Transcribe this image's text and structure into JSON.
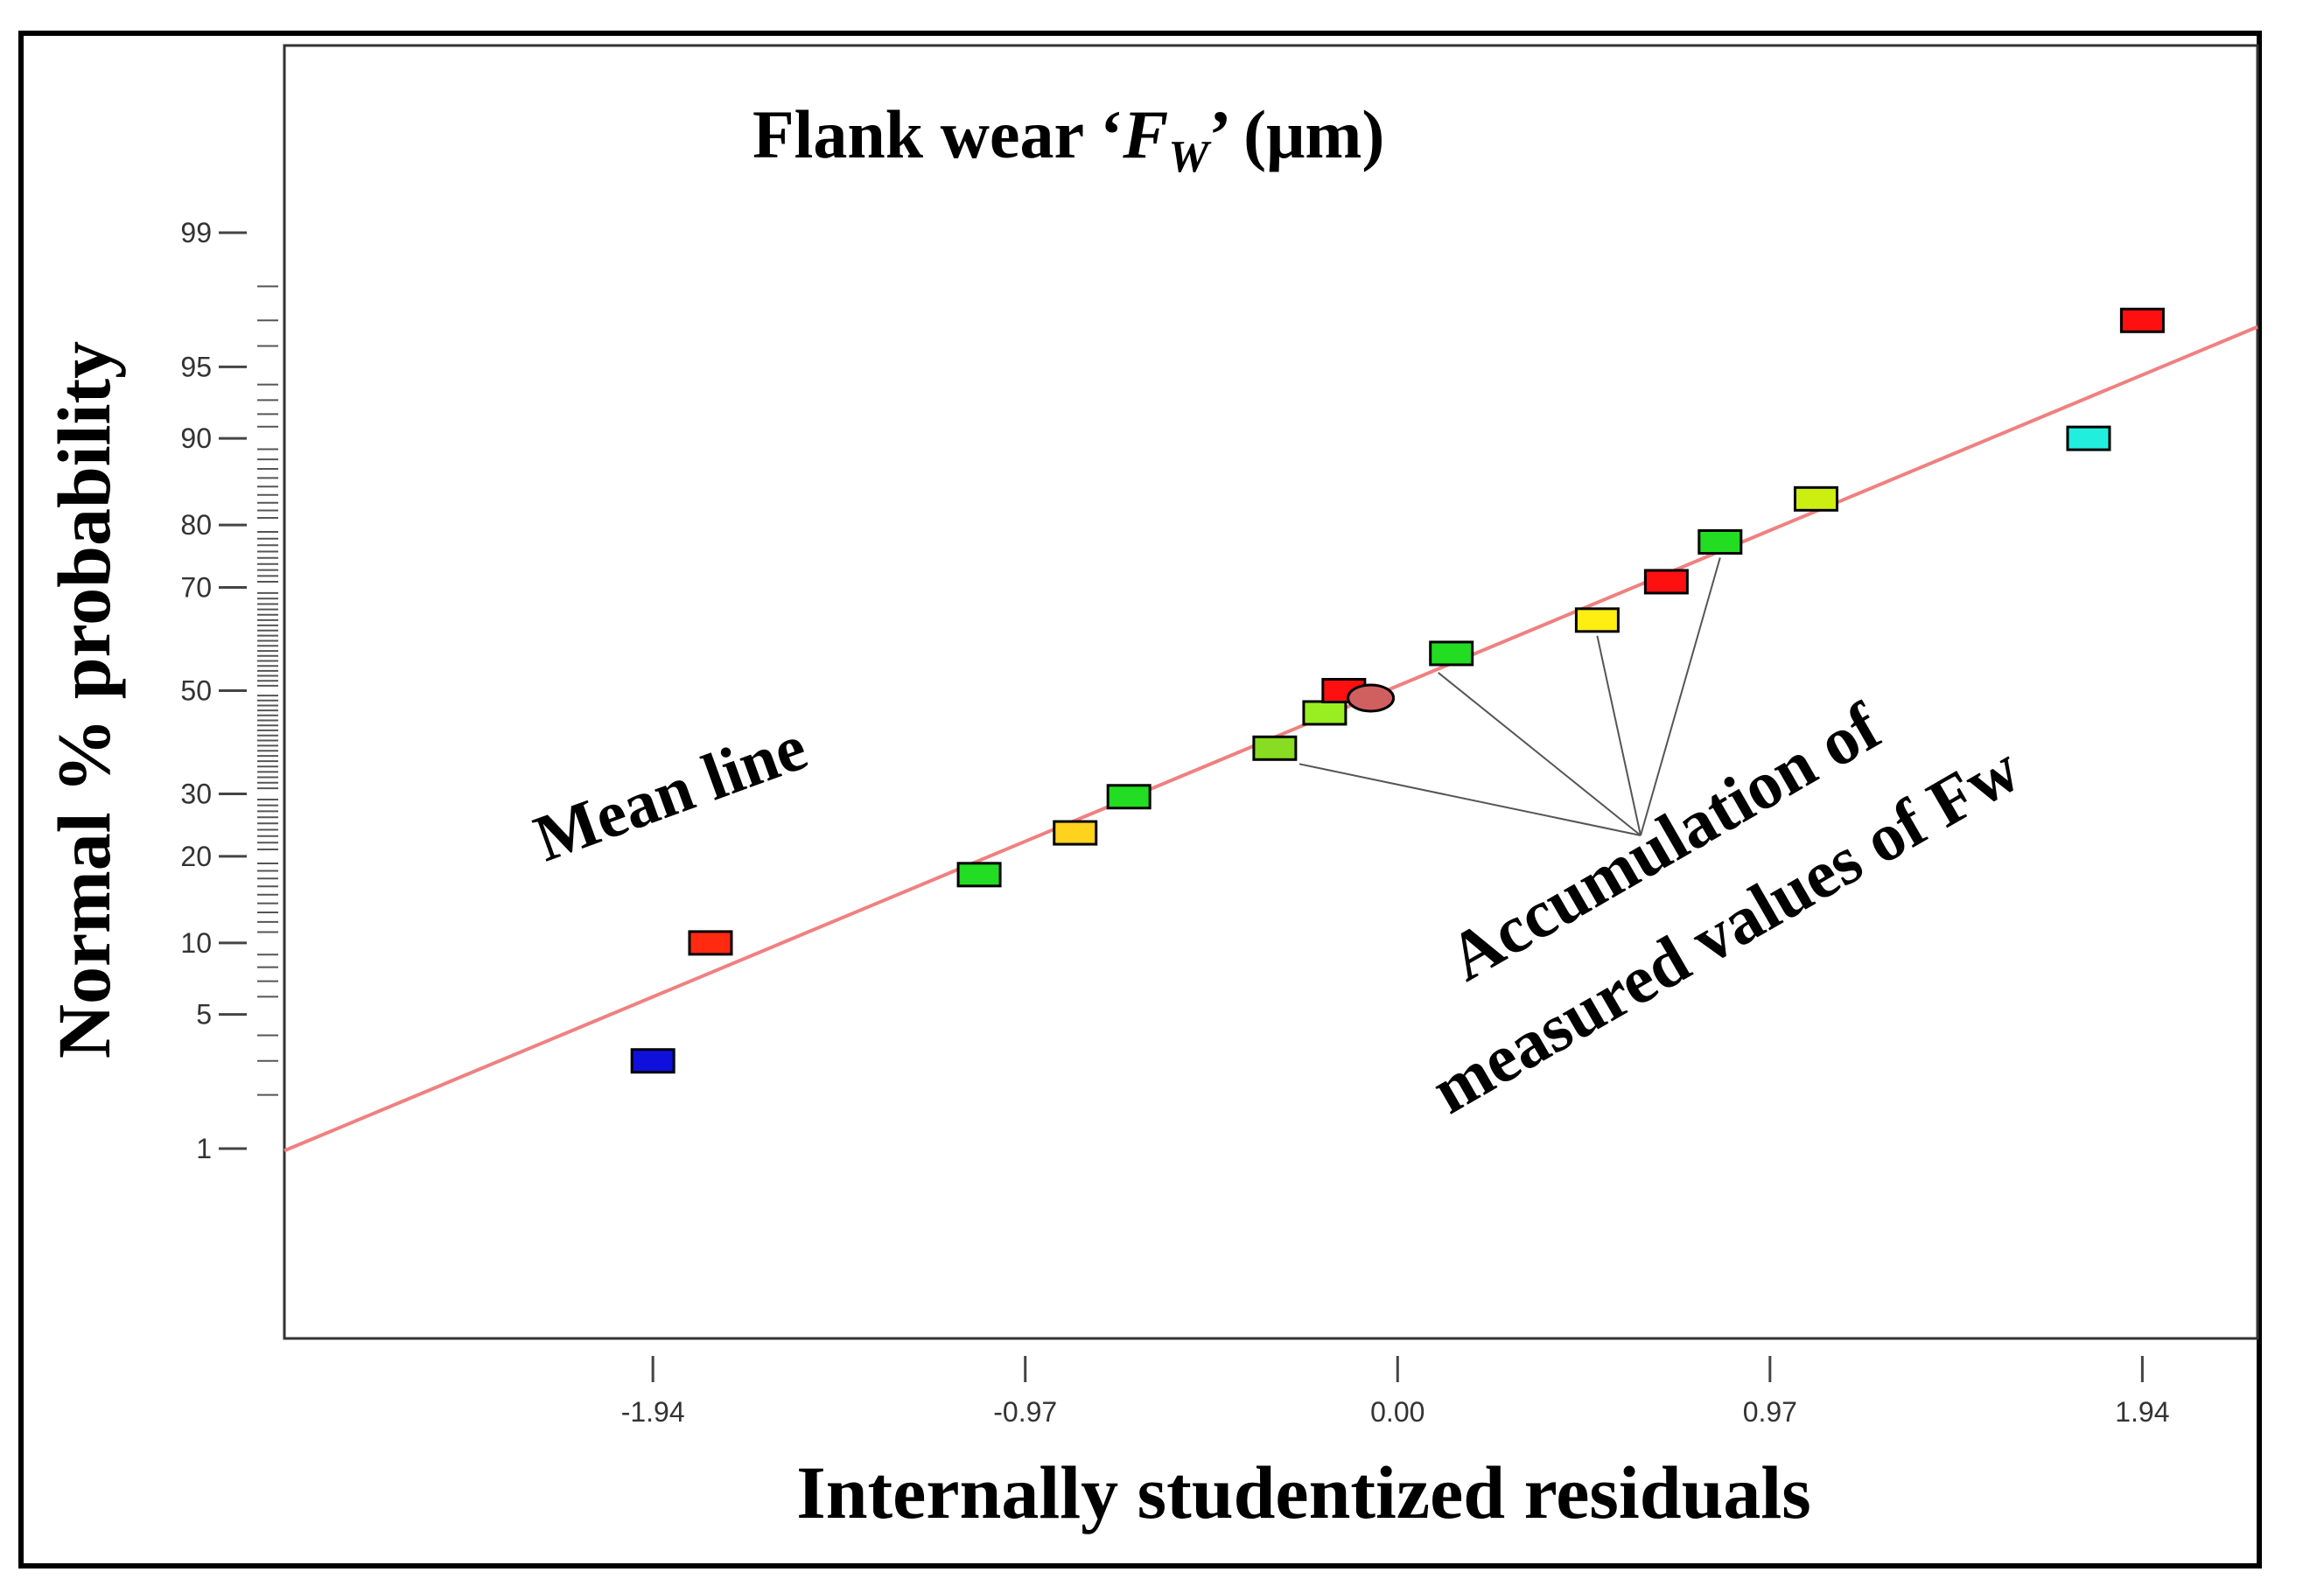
{
  "chart_data": {
    "type": "scatter",
    "title": "Flank wear ‘F’ (μm)",
    "title_subscript": "W",
    "title_after_subscript": "’ (μm)",
    "title_parts": {
      "before": "Flank wear ‘",
      "variable": "F",
      "subscript": "W",
      "after": "’ (μm)"
    },
    "xlabel": "Internally  studentized  residuals",
    "ylabel": "Normal  %  probability",
    "xlim": [
      -2.9,
      2.24
    ],
    "x_ticks": [
      "-1.94",
      "-0.97",
      "0.00",
      "0.97",
      "1.94"
    ],
    "y_ticks": [
      "1",
      "5",
      "10",
      "20",
      "30",
      "50",
      "70",
      "80",
      "90",
      "95",
      "99"
    ],
    "y_scale": "normal-probability",
    "mean_line": {
      "label": "Mean line",
      "color": "#f08080",
      "x": [
        -2.18,
        2.18
      ],
      "y": [
        4.0,
        96.4
      ]
    },
    "annotation": {
      "line1": "Accumulation of",
      "line2": "measured values of Fw"
    },
    "points": [
      {
        "x": -1.94,
        "y": 3.0,
        "color": "#1010dd",
        "shape": "rect"
      },
      {
        "x": -1.79,
        "y": 10.0,
        "color": "#ff2a10",
        "shape": "rect"
      },
      {
        "x": -1.09,
        "y": 17.5,
        "color": "#22dd22",
        "shape": "rect"
      },
      {
        "x": -0.84,
        "y": 23.5,
        "color": "#ffd21e",
        "shape": "rect"
      },
      {
        "x": -0.7,
        "y": 29.5,
        "color": "#22dd22",
        "shape": "rect"
      },
      {
        "x": -0.32,
        "y": 38.5,
        "color": "#88dd22",
        "shape": "rect"
      },
      {
        "x": -0.19,
        "y": 45.5,
        "color": "#99ee22",
        "shape": "rect"
      },
      {
        "x": -0.14,
        "y": 50.0,
        "color": "#ff1010",
        "shape": "rect"
      },
      {
        "x": -0.07,
        "y": 48.5,
        "color": "#d06060",
        "shape": "ellipse"
      },
      {
        "x": 0.14,
        "y": 57.5,
        "color": "#22dd22",
        "shape": "rect"
      },
      {
        "x": 0.52,
        "y": 64.0,
        "color": "#ffee11",
        "shape": "rect"
      },
      {
        "x": 0.7,
        "y": 71.0,
        "color": "#ff1010",
        "shape": "rect"
      },
      {
        "x": 0.84,
        "y": 77.5,
        "color": "#22dd22",
        "shape": "rect"
      },
      {
        "x": 1.09,
        "y": 83.5,
        "color": "#ccee11",
        "shape": "rect"
      },
      {
        "x": 1.8,
        "y": 90.0,
        "color": "#22eedd",
        "shape": "rect"
      },
      {
        "x": 1.94,
        "y": 97.0,
        "color": "#ff1010",
        "shape": "rect"
      }
    ]
  }
}
